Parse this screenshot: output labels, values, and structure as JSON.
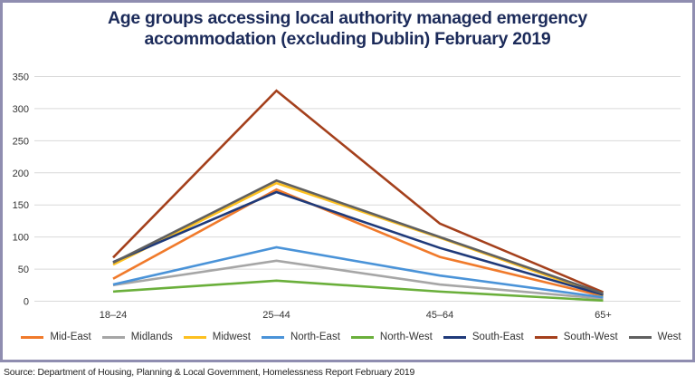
{
  "chart_data": {
    "type": "line",
    "title": "Age groups accessing local authority managed emergency accommodation (excluding Dublin) February 2019",
    "title_lines": [
      "Age groups accessing local authority managed emergency",
      "accommodation (excluding Dublin) February 2019"
    ],
    "xlabel": "",
    "ylabel": "",
    "categories": [
      "18–24",
      "25–44",
      "45–64",
      "65+"
    ],
    "ylim": [
      0,
      350
    ],
    "yticks": [
      0,
      50,
      100,
      150,
      200,
      250,
      300,
      350
    ],
    "grid": true,
    "legend_position": "bottom",
    "series": [
      {
        "name": "Mid-East",
        "color": "#f07a2b",
        "values": [
          35,
          174,
          69,
          8
        ]
      },
      {
        "name": "Midlands",
        "color": "#a6a6a6",
        "values": [
          25,
          63,
          26,
          4
        ]
      },
      {
        "name": "Midwest",
        "color": "#fdc01f",
        "values": [
          57,
          184,
          99,
          9
        ]
      },
      {
        "name": "North-East",
        "color": "#4a93d8",
        "values": [
          26,
          84,
          40,
          6
        ]
      },
      {
        "name": "North-West",
        "color": "#6aaf3b",
        "values": [
          15,
          32,
          15,
          1
        ]
      },
      {
        "name": "South-East",
        "color": "#1f3a7a",
        "values": [
          61,
          170,
          83,
          10
        ]
      },
      {
        "name": "South-West",
        "color": "#a4401c",
        "values": [
          68,
          328,
          121,
          14
        ]
      },
      {
        "name": "West",
        "color": "#606060",
        "values": [
          60,
          188,
          100,
          12
        ]
      }
    ]
  },
  "source": "Source: Department of Housing, Planning & Local Government, Homelessness Report February 2019"
}
